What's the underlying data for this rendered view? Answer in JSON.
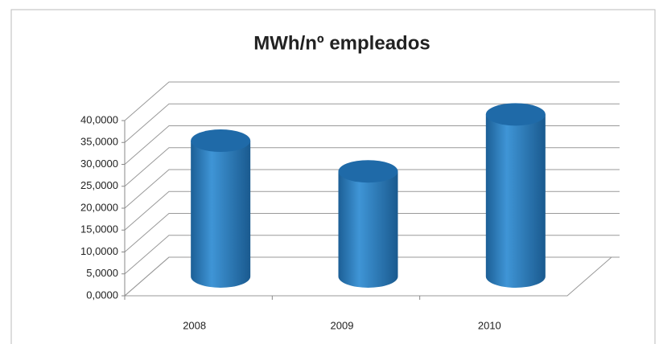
{
  "chart_data": {
    "type": "bar3d",
    "title": "MWh/nº empleados",
    "categories": [
      "2008",
      "2009",
      "2010"
    ],
    "values": [
      31,
      24,
      37
    ],
    "color": "#2a7fc1",
    "ylim": [
      0,
      40
    ],
    "yticks": [
      {
        "value": 0,
        "label": "0,0000"
      },
      {
        "value": 5,
        "label": "5,0000"
      },
      {
        "value": 10,
        "label": "10,0000"
      },
      {
        "value": 15,
        "label": "15,0000"
      },
      {
        "value": 20,
        "label": "20,0000"
      },
      {
        "value": 25,
        "label": "25,0000"
      },
      {
        "value": 30,
        "label": "30,0000"
      },
      {
        "value": 35,
        "label": "35,0000"
      },
      {
        "value": 40,
        "label": "40,0000"
      }
    ],
    "grid": true
  }
}
